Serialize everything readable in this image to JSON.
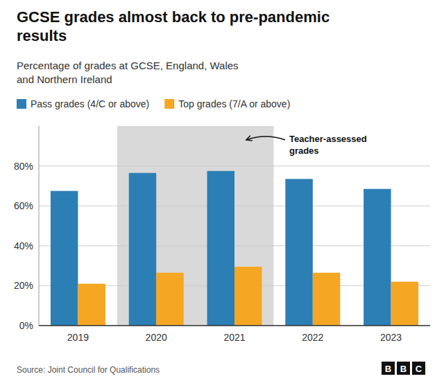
{
  "chart_data": {
    "type": "bar",
    "title": "GCSE grades almost back to pre-pandemic\nresults",
    "subtitle": "Percentage of grades at GCSE, England, Wales\nand Northern Ireland",
    "source": "Source: Joint Council for Qualifications",
    "logo": "BBC",
    "categories": [
      "2019",
      "2020",
      "2021",
      "2022",
      "2023"
    ],
    "series": [
      {
        "name": "Pass grades (4/C or above)",
        "color": "#2b7fb5",
        "values": [
          67.5,
          76.5,
          77.5,
          73.5,
          68.5
        ]
      },
      {
        "name": "Top grades (7/A or above)",
        "color": "#f5a623",
        "values": [
          21.0,
          26.5,
          29.5,
          26.5,
          22.0
        ]
      }
    ],
    "annotations": [
      {
        "text": "Teacher-assessed\ngrades",
        "span": [
          "2020",
          "2021"
        ],
        "color": "#d9d9d9"
      }
    ],
    "ylim": [
      0,
      100
    ],
    "yticks": [
      {
        "value": 0,
        "label": "0%"
      },
      {
        "value": 20,
        "label": "20%"
      },
      {
        "value": 40,
        "label": "40%"
      },
      {
        "value": 60,
        "label": "60%"
      },
      {
        "value": 80,
        "label": "80%"
      }
    ],
    "grid": true,
    "legend": "top"
  }
}
